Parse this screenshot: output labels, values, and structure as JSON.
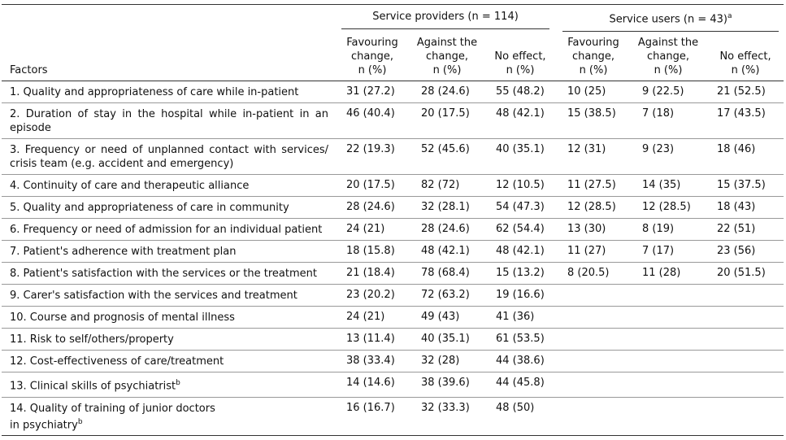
{
  "table": {
    "factor_header": "Factors",
    "groups": [
      {
        "label": "Service providers (n = 114)"
      },
      {
        "label": "Service users (n = 43)",
        "sup": "a"
      }
    ],
    "columns": [
      "Favouring\nchange,\nn (%)",
      "Against the\nchange,\nn (%)",
      "No effect,\nn (%)",
      "Favouring\nchange,\nn (%)",
      "Against the\nchange,\nn (%)",
      "No effect,\nn (%)"
    ],
    "rows": [
      {
        "factor": "1. Quality and appropriateness of care while in-patient",
        "cells": [
          "31 (27.2)",
          "28 (24.6)",
          "55 (48.2)",
          "10 (25)",
          "9 (22.5)",
          "21 (52.5)"
        ]
      },
      {
        "factor": "2. Duration of stay in the hospital while in-patient in an episode",
        "cells": [
          "46 (40.4)",
          "20 (17.5)",
          "48 (42.1)",
          "15 (38.5)",
          "7 (18)",
          "17 (43.5)"
        ]
      },
      {
        "factor": "3. Frequency or need of unplanned contact with services/ crisis team (e.g. accident and emergency)",
        "cells": [
          "22 (19.3)",
          "52 (45.6)",
          "40 (35.1)",
          "12 (31)",
          "9 (23)",
          "18 (46)"
        ]
      },
      {
        "factor": "4. Continuity of care and therapeutic alliance",
        "cells": [
          "20 (17.5)",
          "82 (72)",
          "12 (10.5)",
          "11 (27.5)",
          "14 (35)",
          "15 (37.5)"
        ]
      },
      {
        "factor": "5. Quality and appropriateness of care in community",
        "cells": [
          "28 (24.6)",
          "32 (28.1)",
          "54 (47.3)",
          "12 (28.5)",
          "12 (28.5)",
          "18 (43)"
        ]
      },
      {
        "factor": "6. Frequency or need of admission for an individual patient",
        "cells": [
          "24 (21)",
          "28 (24.6)",
          "62 (54.4)",
          "13 (30)",
          "8 (19)",
          "22 (51)"
        ]
      },
      {
        "factor": "7. Patient's adherence with treatment plan",
        "cells": [
          "18 (15.8)",
          "48 (42.1)",
          "48 (42.1)",
          "11 (27)",
          "7 (17)",
          "23 (56)"
        ]
      },
      {
        "factor": "8. Patient's satisfaction with the services or the treatment",
        "cells": [
          "21 (18.4)",
          "78 (68.4)",
          "15 (13.2)",
          "8 (20.5)",
          "11 (28)",
          "20 (51.5)"
        ]
      },
      {
        "factor": "9. Carer's satisfaction with the services and treatment",
        "cells": [
          "23 (20.2)",
          "72 (63.2)",
          "19 (16.6)"
        ]
      },
      {
        "factor": "10. Course and prognosis of mental illness",
        "cells": [
          "24 (21)",
          "49 (43)",
          "41 (36)"
        ]
      },
      {
        "factor": "11. Risk to self/others/property",
        "cells": [
          "13 (11.4)",
          "40 (35.1)",
          "61 (53.5)"
        ]
      },
      {
        "factor": "12. Cost-effectiveness of care/treatment",
        "cells": [
          "38 (33.4)",
          "32 (28)",
          "44 (38.6)"
        ]
      },
      {
        "factor": "13. Clinical skills of psychiatrist",
        "sup": "b",
        "cells": [
          "14 (14.6)",
          "38 (39.6)",
          "44 (45.8)"
        ]
      },
      {
        "factor": "14. Quality of training of junior doctors\nin psychiatry",
        "sup": "b",
        "cells": [
          "16 (16.7)",
          "32 (33.3)",
          "48 (50)"
        ]
      }
    ]
  }
}
